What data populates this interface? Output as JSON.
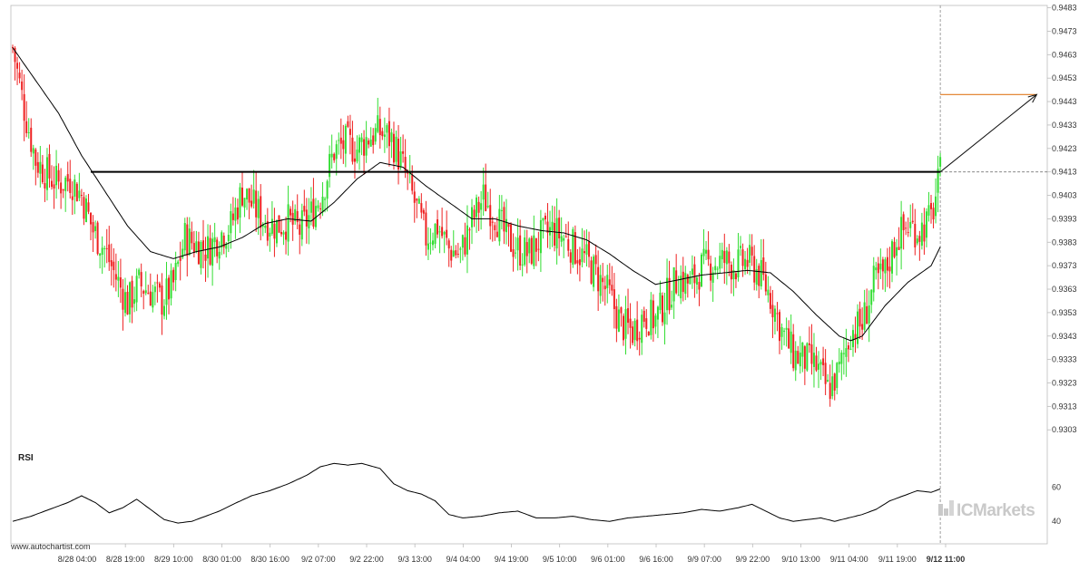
{
  "chart_data": {
    "type": "candlestick",
    "instrument_note": "",
    "y_axis": {
      "ticks": [
        "0.9483",
        "0.9473",
        "0.9463",
        "0.9453",
        "0.9443",
        "0.9433",
        "0.9423",
        "0.9413",
        "0.9403",
        "0.9393",
        "0.9383",
        "0.9373",
        "0.9363",
        "0.9353",
        "0.9343",
        "0.9333",
        "0.9323",
        "0.9313",
        "0.9303"
      ],
      "ylim": [
        0.93,
        0.9484
      ]
    },
    "x_axis": {
      "ticks": [
        "8/28 04:00",
        "8/28 19:00",
        "8/29 10:00",
        "8/30 01:00",
        "8/30 16:00",
        "9/2 07:00",
        "9/2 22:00",
        "9/3 13:00",
        "9/4 04:00",
        "9/4 19:00",
        "9/5 10:00",
        "9/6 01:00",
        "9/6 16:00",
        "9/9 07:00",
        "9/9 22:00",
        "9/10 13:00",
        "9/11 04:00",
        "9/11 19:00",
        "9/12 11:00"
      ],
      "highlight_tick": "9/12 11:00"
    },
    "close_path": [
      [
        0,
        0.9466
      ],
      [
        5,
        0.944
      ],
      [
        10,
        0.9418
      ],
      [
        15,
        0.9412
      ],
      [
        20,
        0.9408
      ],
      [
        25,
        0.941
      ],
      [
        30,
        0.9403
      ],
      [
        35,
        0.9388
      ],
      [
        40,
        0.938
      ],
      [
        45,
        0.9368
      ],
      [
        50,
        0.9357
      ],
      [
        55,
        0.9365
      ],
      [
        60,
        0.9362
      ],
      [
        65,
        0.9358
      ],
      [
        70,
        0.9365
      ],
      [
        75,
        0.9385
      ],
      [
        80,
        0.9382
      ],
      [
        85,
        0.938
      ],
      [
        90,
        0.9386
      ],
      [
        95,
        0.939
      ],
      [
        100,
        0.9405
      ],
      [
        105,
        0.9398
      ],
      [
        110,
        0.9392
      ],
      [
        115,
        0.939
      ],
      [
        120,
        0.9392
      ],
      [
        125,
        0.9388
      ],
      [
        130,
        0.9395
      ],
      [
        135,
        0.9405
      ],
      [
        140,
        0.9422
      ],
      [
        145,
        0.9425
      ],
      [
        150,
        0.9423
      ],
      [
        155,
        0.9428
      ],
      [
        160,
        0.943
      ],
      [
        165,
        0.9427
      ],
      [
        170,
        0.9415
      ],
      [
        175,
        0.94
      ],
      [
        180,
        0.9385
      ],
      [
        185,
        0.939
      ],
      [
        190,
        0.938
      ],
      [
        195,
        0.9378
      ],
      [
        200,
        0.9392
      ],
      [
        205,
        0.9402
      ],
      [
        210,
        0.9395
      ],
      [
        215,
        0.9385
      ],
      [
        220,
        0.938
      ],
      [
        225,
        0.9378
      ],
      [
        230,
        0.9385
      ],
      [
        235,
        0.9388
      ],
      [
        240,
        0.9385
      ],
      [
        245,
        0.938
      ],
      [
        250,
        0.9375
      ],
      [
        255,
        0.9368
      ],
      [
        260,
        0.936
      ],
      [
        265,
        0.9348
      ],
      [
        270,
        0.9345
      ],
      [
        275,
        0.9352
      ],
      [
        280,
        0.935
      ],
      [
        285,
        0.936
      ],
      [
        290,
        0.9368
      ],
      [
        295,
        0.9365
      ],
      [
        300,
        0.9372
      ],
      [
        305,
        0.9374
      ],
      [
        310,
        0.9375
      ],
      [
        315,
        0.9373
      ],
      [
        320,
        0.9375
      ],
      [
        325,
        0.937
      ],
      [
        330,
        0.936
      ],
      [
        335,
        0.9345
      ],
      [
        340,
        0.9335
      ],
      [
        345,
        0.9333
      ],
      [
        350,
        0.933
      ],
      [
        355,
        0.932
      ],
      [
        360,
        0.9328
      ],
      [
        365,
        0.9345
      ],
      [
        370,
        0.9348
      ],
      [
        375,
        0.9365
      ],
      [
        380,
        0.937
      ],
      [
        385,
        0.9385
      ],
      [
        390,
        0.939
      ],
      [
        395,
        0.9388
      ],
      [
        400,
        0.9393
      ],
      [
        404,
        0.9412
      ]
    ],
    "ma_path": [
      [
        0,
        0.9466
      ],
      [
        10,
        0.9452
      ],
      [
        20,
        0.9438
      ],
      [
        30,
        0.942
      ],
      [
        40,
        0.9405
      ],
      [
        50,
        0.939
      ],
      [
        60,
        0.9379
      ],
      [
        70,
        0.9376
      ],
      [
        80,
        0.9379
      ],
      [
        90,
        0.9381
      ],
      [
        100,
        0.9385
      ],
      [
        110,
        0.9391
      ],
      [
        120,
        0.9393
      ],
      [
        130,
        0.9392
      ],
      [
        140,
        0.94
      ],
      [
        150,
        0.941
      ],
      [
        160,
        0.9417
      ],
      [
        170,
        0.9415
      ],
      [
        180,
        0.9407
      ],
      [
        190,
        0.94
      ],
      [
        200,
        0.9393
      ],
      [
        210,
        0.9393
      ],
      [
        220,
        0.939
      ],
      [
        230,
        0.9388
      ],
      [
        240,
        0.9387
      ],
      [
        250,
        0.9384
      ],
      [
        260,
        0.9378
      ],
      [
        270,
        0.9371
      ],
      [
        280,
        0.9365
      ],
      [
        290,
        0.9367
      ],
      [
        300,
        0.9369
      ],
      [
        310,
        0.937
      ],
      [
        320,
        0.9371
      ],
      [
        330,
        0.937
      ],
      [
        340,
        0.9362
      ],
      [
        350,
        0.9352
      ],
      [
        360,
        0.9343
      ],
      [
        365,
        0.9341
      ],
      [
        370,
        0.9343
      ],
      [
        380,
        0.9356
      ],
      [
        390,
        0.9366
      ],
      [
        400,
        0.9373
      ],
      [
        404,
        0.9381
      ]
    ],
    "resistance_level": {
      "value": 0.9413,
      "from": 34,
      "to": 404
    },
    "target_level": {
      "value": 0.9446,
      "from": 404,
      "to": 446
    },
    "forecast_arrow": {
      "from": [
        404,
        0.9413
      ],
      "to": [
        446,
        0.9446
      ]
    },
    "rsi": {
      "title": "RSI",
      "ticks": [
        "60",
        "40"
      ],
      "ylim": [
        30,
        80
      ],
      "values": [
        [
          0,
          40
        ],
        [
          8,
          43
        ],
        [
          16,
          47
        ],
        [
          24,
          51
        ],
        [
          30,
          55
        ],
        [
          36,
          51
        ],
        [
          42,
          45
        ],
        [
          48,
          48
        ],
        [
          54,
          53
        ],
        [
          60,
          47
        ],
        [
          66,
          41
        ],
        [
          72,
          39
        ],
        [
          78,
          40
        ],
        [
          84,
          43
        ],
        [
          90,
          46
        ],
        [
          96,
          50
        ],
        [
          104,
          55
        ],
        [
          112,
          58
        ],
        [
          120,
          62
        ],
        [
          128,
          67
        ],
        [
          134,
          72
        ],
        [
          140,
          74
        ],
        [
          146,
          73
        ],
        [
          152,
          74
        ],
        [
          160,
          71
        ],
        [
          166,
          62
        ],
        [
          172,
          58
        ],
        [
          178,
          56
        ],
        [
          184,
          52
        ],
        [
          190,
          44
        ],
        [
          196,
          42
        ],
        [
          204,
          43
        ],
        [
          212,
          45
        ],
        [
          220,
          46
        ],
        [
          228,
          42
        ],
        [
          236,
          42
        ],
        [
          244,
          43
        ],
        [
          252,
          41
        ],
        [
          260,
          40
        ],
        [
          268,
          42
        ],
        [
          276,
          43
        ],
        [
          284,
          44
        ],
        [
          292,
          45
        ],
        [
          300,
          47
        ],
        [
          308,
          46
        ],
        [
          316,
          48
        ],
        [
          322,
          50
        ],
        [
          328,
          46
        ],
        [
          334,
          42
        ],
        [
          340,
          40
        ],
        [
          346,
          41
        ],
        [
          352,
          42
        ],
        [
          358,
          40
        ],
        [
          364,
          42
        ],
        [
          370,
          44
        ],
        [
          376,
          47
        ],
        [
          382,
          52
        ],
        [
          388,
          55
        ],
        [
          394,
          58
        ],
        [
          400,
          57
        ],
        [
          404,
          59
        ]
      ]
    },
    "footer_left": "www.autochartist.com",
    "brand_text": "ICMarkets",
    "colors": {
      "bull": "#33dd33",
      "bear": "#ee2222",
      "line": "#000000",
      "target": "#e07a20",
      "grid": "#cccccc",
      "frame": "#bbbbbb"
    }
  }
}
